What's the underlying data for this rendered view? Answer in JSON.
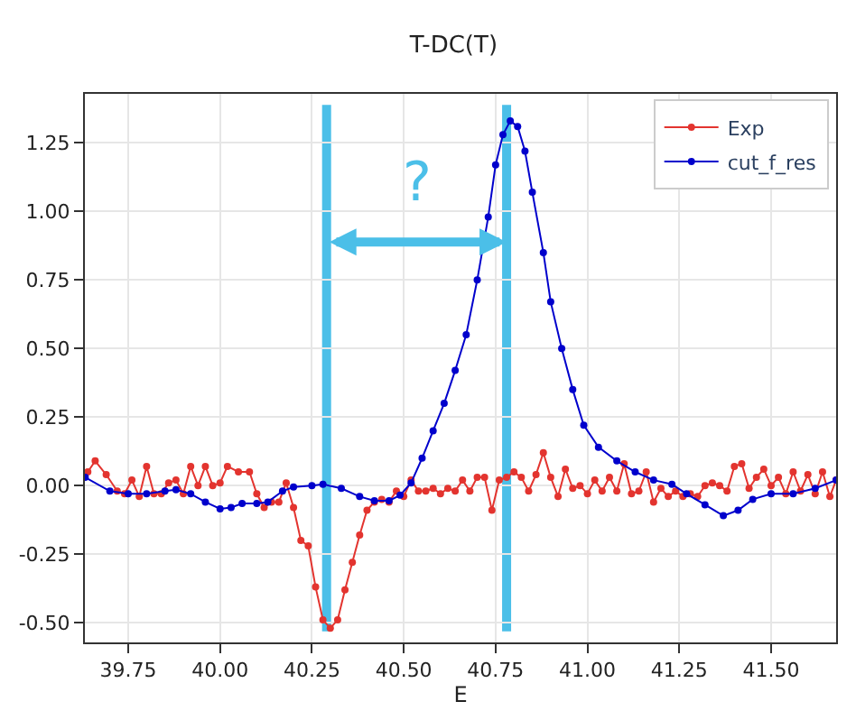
{
  "chart_data": {
    "type": "line",
    "title": "T-DC(T)",
    "xlabel": "E",
    "xlim": [
      39.632,
      41.677
    ],
    "xticks": [
      39.75,
      {
        "value": 40,
        "label": "40.00"
      },
      40.25,
      {
        "value": 40.5,
        "label": "40.50"
      },
      40.75,
      {
        "value": 41,
        "label": "41.00"
      },
      41.25,
      {
        "value": 41.5,
        "label": "41.50"
      }
    ],
    "ylim": [
      -0.572,
      1.429
    ],
    "yticks": [
      {
        "value": -0.5,
        "label": "-0.50"
      },
      -0.25,
      {
        "value": 0,
        "label": "0.00"
      },
      0.25,
      {
        "value": 0.5,
        "label": "0.50"
      },
      0.75,
      {
        "value": 1,
        "label": "1.00"
      },
      1.25
    ],
    "grid": true,
    "legend": "top right",
    "marker": "circle",
    "line_style": "solid",
    "series": [
      {
        "name": "Exp",
        "color": "#e3342f",
        "x": [
          39.64,
          39.66,
          39.69,
          39.72,
          39.74,
          39.76,
          39.78,
          39.8,
          39.82,
          39.84,
          39.86,
          39.88,
          39.9,
          39.92,
          39.94,
          39.96,
          39.98,
          40.0,
          40.02,
          40.05,
          40.08,
          40.1,
          40.12,
          40.14,
          40.16,
          40.18,
          40.2,
          40.22,
          40.24,
          40.26,
          40.28,
          40.3,
          40.32,
          40.34,
          40.36,
          40.38,
          40.4,
          40.42,
          40.44,
          40.46,
          40.48,
          40.5,
          40.52,
          40.54,
          40.56,
          40.58,
          40.6,
          40.62,
          40.64,
          40.66,
          40.68,
          40.7,
          40.72,
          40.74,
          40.76,
          40.78,
          40.8,
          40.82,
          40.84,
          40.86,
          40.88,
          40.9,
          40.92,
          40.94,
          40.96,
          40.98,
          41.0,
          41.02,
          41.04,
          41.06,
          41.08,
          41.1,
          41.12,
          41.14,
          41.16,
          41.18,
          41.2,
          41.22,
          41.24,
          41.26,
          41.28,
          41.3,
          41.32,
          41.34,
          41.36,
          41.38,
          41.4,
          41.42,
          41.44,
          41.46,
          41.48,
          41.5,
          41.52,
          41.54,
          41.56,
          41.58,
          41.6,
          41.62,
          41.64,
          41.66,
          41.677
        ],
        "values": [
          0.05,
          0.09,
          0.04,
          -0.02,
          -0.03,
          0.02,
          -0.04,
          0.07,
          -0.03,
          -0.03,
          0.01,
          0.02,
          -0.03,
          0.07,
          0.0,
          0.07,
          0.0,
          0.01,
          0.07,
          0.05,
          0.05,
          -0.03,
          -0.08,
          -0.06,
          -0.06,
          0.01,
          -0.08,
          -0.2,
          -0.22,
          -0.37,
          -0.49,
          -0.52,
          -0.49,
          -0.38,
          -0.28,
          -0.18,
          -0.09,
          -0.06,
          -0.05,
          -0.06,
          -0.02,
          -0.04,
          0.02,
          -0.02,
          -0.02,
          -0.01,
          -0.03,
          -0.01,
          -0.02,
          0.02,
          -0.02,
          0.03,
          0.03,
          -0.09,
          0.02,
          0.03,
          0.05,
          0.03,
          -0.02,
          0.04,
          0.12,
          0.03,
          -0.04,
          0.06,
          -0.01,
          0.0,
          -0.03,
          0.02,
          -0.02,
          0.03,
          -0.02,
          0.08,
          -0.03,
          -0.02,
          0.05,
          -0.06,
          -0.01,
          -0.04,
          -0.02,
          -0.04,
          -0.03,
          -0.04,
          0.0,
          0.01,
          0.0,
          -0.02,
          0.07,
          0.08,
          -0.01,
          0.03,
          0.06,
          0.0,
          0.03,
          -0.03,
          0.05,
          -0.02,
          0.04,
          -0.03,
          0.05,
          -0.04,
          0.02
        ]
      },
      {
        "name": "cut_f_res",
        "color": "#0000cc",
        "x": [
          39.633,
          39.7,
          39.75,
          39.8,
          39.85,
          39.88,
          39.92,
          39.96,
          40.0,
          40.03,
          40.06,
          40.1,
          40.13,
          40.17,
          40.2,
          40.25,
          40.28,
          40.33,
          40.38,
          40.42,
          40.46,
          40.49,
          40.52,
          40.55,
          40.58,
          40.61,
          40.64,
          40.67,
          40.7,
          40.73,
          40.75,
          40.77,
          40.79,
          40.81,
          40.83,
          40.85,
          40.88,
          40.9,
          40.93,
          40.96,
          40.99,
          41.03,
          41.08,
          41.13,
          41.18,
          41.23,
          41.27,
          41.32,
          41.37,
          41.41,
          41.45,
          41.5,
          41.56,
          41.62,
          41.677
        ],
        "values": [
          0.03,
          -0.02,
          -0.03,
          -0.03,
          -0.02,
          -0.015,
          -0.03,
          -0.06,
          -0.085,
          -0.08,
          -0.065,
          -0.065,
          -0.06,
          -0.02,
          -0.005,
          0.0,
          0.005,
          -0.01,
          -0.04,
          -0.055,
          -0.055,
          -0.035,
          0.01,
          0.1,
          0.2,
          0.3,
          0.42,
          0.55,
          0.75,
          0.98,
          1.17,
          1.28,
          1.33,
          1.31,
          1.22,
          1.07,
          0.85,
          0.67,
          0.5,
          0.35,
          0.22,
          0.14,
          0.09,
          0.05,
          0.02,
          0.005,
          -0.03,
          -0.07,
          -0.11,
          -0.09,
          -0.05,
          -0.03,
          -0.03,
          -0.01,
          0.02
        ]
      }
    ],
    "ref_lines": [
      {
        "axis": "x",
        "value": 40.29,
        "color": "#4bbfe8"
      },
      {
        "axis": "x",
        "value": 40.78,
        "color": "#4bbfe8"
      }
    ],
    "annotations": [
      "?"
    ]
  }
}
